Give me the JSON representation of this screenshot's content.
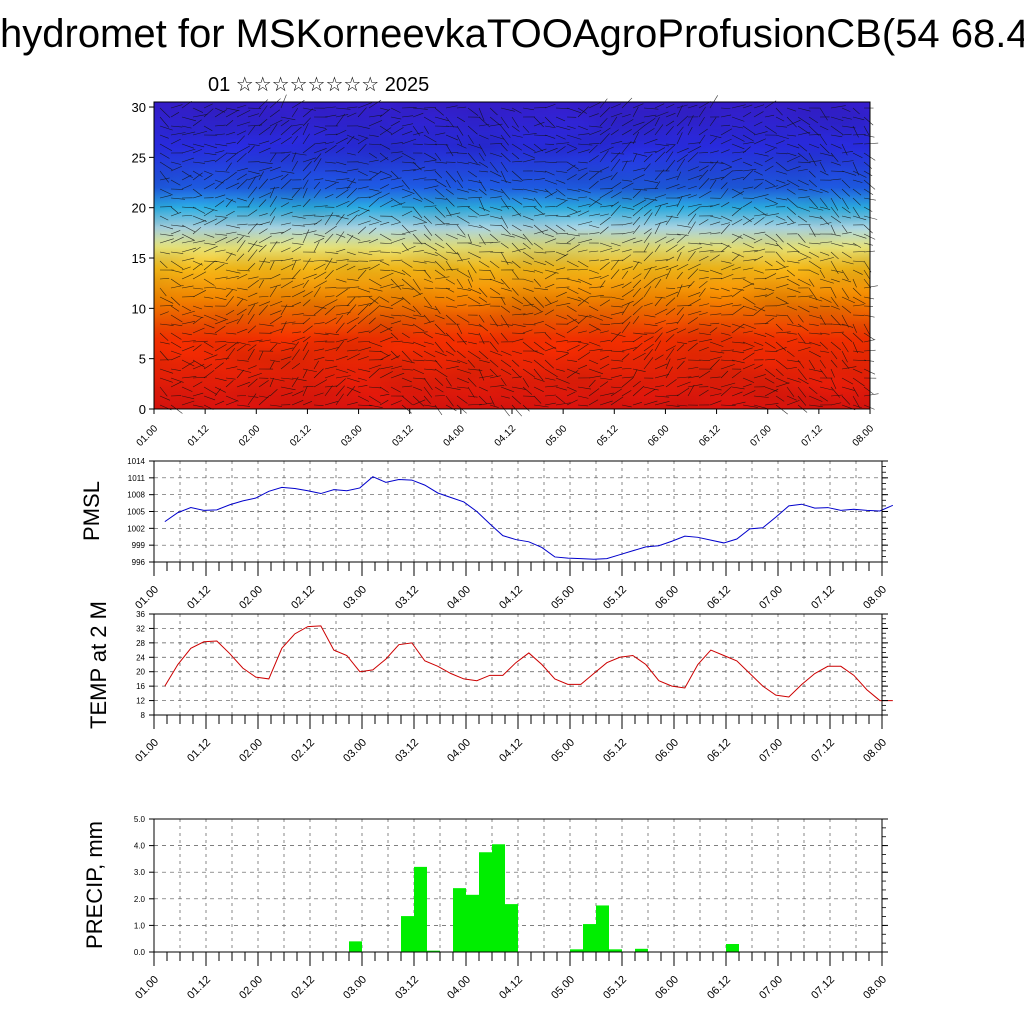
{
  "header": {
    "title": "hydromet for MSKorneevkaTOOAgroProfusionCB(54 68.4",
    "subtitle": "01 ☆☆☆☆☆☆☆☆ 2025"
  },
  "chart_data": [
    {
      "type": "heatmap",
      "name": "cross-section",
      "xlabel": "",
      "ylabel": "",
      "x_ticks": [
        "01.00",
        "01.12",
        "02.00",
        "02.12",
        "03.00",
        "03.12",
        "04.00",
        "04.12",
        "05.00",
        "05.12",
        "06.00",
        "06.12",
        "07.00",
        "07.12",
        "08.00"
      ],
      "y_ticks": [
        0,
        5,
        10,
        15,
        20,
        25,
        30
      ],
      "ylim": [
        0,
        30.5
      ],
      "color_bands": [
        {
          "y": 0,
          "color": "#e8140f"
        },
        {
          "y": 7,
          "color": "#ff3300"
        },
        {
          "y": 11,
          "color": "#ff8c00"
        },
        {
          "y": 14,
          "color": "#ffc21a"
        },
        {
          "y": 16,
          "color": "#f2ec7a"
        },
        {
          "y": 18,
          "color": "#b5e3f2"
        },
        {
          "y": 20,
          "color": "#2fb7ef"
        },
        {
          "y": 22,
          "color": "#2060ee"
        },
        {
          "y": 26,
          "color": "#2a2ee8"
        },
        {
          "y": 30.5,
          "color": "#3a1fd8"
        }
      ]
    },
    {
      "type": "line",
      "name": "pmsl",
      "ylabel": "PMSL",
      "color": "#0000cc",
      "x_ticks": [
        "01.00",
        "01.12",
        "02.00",
        "02.12",
        "03.00",
        "03.12",
        "04.00",
        "04.12",
        "05.00",
        "05.12",
        "06.00",
        "06.12",
        "07.00",
        "07.12",
        "08.00"
      ],
      "y_ticks": [
        996,
        999,
        1002,
        1005,
        1008,
        1011,
        1014
      ],
      "ylim": [
        996,
        1014
      ],
      "x": [
        0,
        3,
        6,
        9,
        12,
        15,
        18,
        21,
        24,
        27,
        30,
        33,
        36,
        39,
        42,
        45,
        48,
        51,
        54,
        57,
        60,
        63,
        66,
        69,
        72,
        75,
        78,
        81,
        84,
        87,
        90,
        93,
        96,
        99,
        102,
        105,
        108,
        111,
        114,
        117,
        120,
        123,
        126,
        129,
        132,
        135,
        138,
        141,
        144,
        147,
        150,
        153,
        156,
        159,
        162,
        165,
        168
      ],
      "values": [
        1003.2,
        1004.8,
        1005.7,
        1005.2,
        1005.3,
        1006.2,
        1006.9,
        1007.4,
        1008.6,
        1009.3,
        1009.1,
        1008.7,
        1008.2,
        1008.9,
        1008.7,
        1009.2,
        1011.2,
        1010.2,
        1010.7,
        1010.6,
        1009.7,
        1008.3,
        1007.5,
        1006.7,
        1005.0,
        1002.8,
        1000.7,
        1000.0,
        999.6,
        998.6,
        996.9,
        996.7,
        996.6,
        996.5,
        996.6,
        997.3,
        998.0,
        998.7,
        998.9,
        999.7,
        1000.6,
        1000.4,
        999.9,
        999.4,
        1000.1,
        1001.9,
        1002.1,
        1004.0,
        1006.0,
        1006.3,
        1005.6,
        1005.7,
        1005.2,
        1005.4,
        1005.2,
        1005.1,
        1006.1
      ]
    },
    {
      "type": "line",
      "name": "temp",
      "ylabel": "TEMP at 2 M",
      "color": "#cc0000",
      "x_ticks": [
        "01.00",
        "01.12",
        "02.00",
        "02.12",
        "03.00",
        "03.12",
        "04.00",
        "04.12",
        "05.00",
        "05.12",
        "06.00",
        "06.12",
        "07.00",
        "07.12",
        "08.00"
      ],
      "y_ticks": [
        8,
        12,
        16,
        20,
        24,
        28,
        32,
        36
      ],
      "ylim": [
        8,
        36
      ],
      "x": [
        0,
        3,
        6,
        9,
        12,
        15,
        18,
        21,
        24,
        27,
        30,
        33,
        36,
        39,
        42,
        45,
        48,
        51,
        54,
        57,
        60,
        63,
        66,
        69,
        72,
        75,
        78,
        81,
        84,
        87,
        90,
        93,
        96,
        99,
        102,
        105,
        108,
        111,
        114,
        117,
        120,
        123,
        126,
        129,
        132,
        135,
        138,
        141,
        144,
        147,
        150,
        153,
        156,
        159,
        162,
        165,
        168
      ],
      "values": [
        16,
        22,
        26.5,
        28.3,
        28.5,
        25,
        21,
        18.5,
        18,
        26.5,
        30.5,
        32.5,
        32.7,
        26,
        24.5,
        20,
        20.5,
        23.5,
        27.5,
        28,
        23,
        21.5,
        19.5,
        18,
        17.5,
        19,
        19,
        22.5,
        25.2,
        22,
        18,
        16.5,
        16.5,
        19.5,
        22.5,
        24,
        24.5,
        22,
        17.5,
        16,
        15.5,
        22,
        26,
        24.5,
        23,
        19.5,
        16,
        13.5,
        13,
        16.5,
        19.5,
        21.5,
        21.5,
        19,
        15,
        12,
        12
      ]
    },
    {
      "type": "bar",
      "name": "precip",
      "ylabel": "PRECIP, mm",
      "color": "#00ee00",
      "x_ticks": [
        "01.00",
        "01.12",
        "02.00",
        "02.12",
        "03.00",
        "03.12",
        "04.00",
        "04.12",
        "05.00",
        "05.12",
        "06.00",
        "06.12",
        "07.00",
        "07.12",
        "08.00"
      ],
      "y_ticks": [
        "0.0",
        "1.0",
        "2.0",
        "3.0",
        "4.0",
        "5.0"
      ],
      "ylim": [
        0,
        5
      ],
      "bar_width_h": 3,
      "x": [
        45,
        57,
        60,
        63,
        69,
        72,
        75,
        78,
        81,
        84,
        96,
        99,
        102,
        105,
        111,
        132
      ],
      "values": [
        0.4,
        1.35,
        3.2,
        0.05,
        2.4,
        2.15,
        3.75,
        4.05,
        1.8,
        0.0,
        0.1,
        1.05,
        1.75,
        0.1,
        0.12,
        0.3
      ]
    }
  ]
}
